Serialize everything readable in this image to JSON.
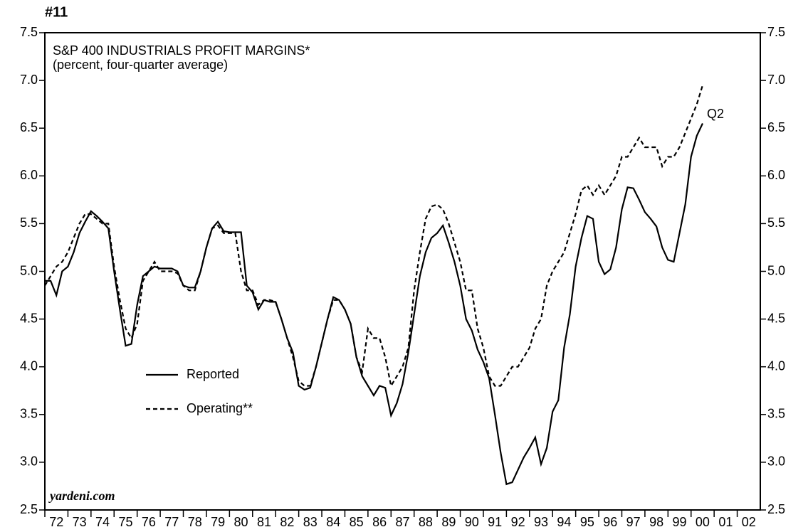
{
  "chart_data": {
    "type": "line",
    "chart_number": "#11",
    "title": "S&P 400 INDUSTRIALS PROFIT MARGINS*",
    "subtitle": "(percent, four-quarter average)",
    "source": "yardeni.com",
    "annotation": "Q2",
    "legend_position": "lower-left",
    "xlim": [
      1972,
      2003
    ],
    "xticks": [
      {
        "value": 1972.5,
        "label": "72"
      },
      {
        "value": 1973.5,
        "label": "73"
      },
      {
        "value": 1974.5,
        "label": "74"
      },
      {
        "value": 1975.5,
        "label": "75"
      },
      {
        "value": 1976.5,
        "label": "76"
      },
      {
        "value": 1977.5,
        "label": "77"
      },
      {
        "value": 1978.5,
        "label": "78"
      },
      {
        "value": 1979.5,
        "label": "79"
      },
      {
        "value": 1980.5,
        "label": "80"
      },
      {
        "value": 1981.5,
        "label": "81"
      },
      {
        "value": 1982.5,
        "label": "82"
      },
      {
        "value": 1983.5,
        "label": "83"
      },
      {
        "value": 1984.5,
        "label": "84"
      },
      {
        "value": 1985.5,
        "label": "85"
      },
      {
        "value": 1986.5,
        "label": "86"
      },
      {
        "value": 1987.5,
        "label": "87"
      },
      {
        "value": 1988.5,
        "label": "88"
      },
      {
        "value": 1989.5,
        "label": "89"
      },
      {
        "value": 1990.5,
        "label": "90"
      },
      {
        "value": 1991.5,
        "label": "91"
      },
      {
        "value": 1992.5,
        "label": "92"
      },
      {
        "value": 1993.5,
        "label": "93"
      },
      {
        "value": 1994.5,
        "label": "94"
      },
      {
        "value": 1995.5,
        "label": "95"
      },
      {
        "value": 1996.5,
        "label": "96"
      },
      {
        "value": 1997.5,
        "label": "97"
      },
      {
        "value": 1998.5,
        "label": "98"
      },
      {
        "value": 1999.5,
        "label": "99"
      },
      {
        "value": 2000.5,
        "label": "00"
      },
      {
        "value": 2001.5,
        "label": "01"
      },
      {
        "value": 2002.5,
        "label": "02"
      }
    ],
    "ylim": [
      2.5,
      7.5
    ],
    "yticks": [
      {
        "value": 2.5,
        "label": "2.5"
      },
      {
        "value": 3.0,
        "label": "3.0"
      },
      {
        "value": 3.5,
        "label": "3.5"
      },
      {
        "value": 4.0,
        "label": "4.0"
      },
      {
        "value": 4.5,
        "label": "4.5"
      },
      {
        "value": 5.0,
        "label": "5.0"
      },
      {
        "value": 5.5,
        "label": "5.5"
      },
      {
        "value": 6.0,
        "label": "6.0"
      },
      {
        "value": 6.5,
        "label": "6.5"
      },
      {
        "value": 7.0,
        "label": "7.0"
      },
      {
        "value": 7.5,
        "label": "7.5"
      }
    ],
    "grid": false,
    "x": [
      1972,
      1972.25,
      1972.5,
      1972.75,
      1973,
      1973.25,
      1973.5,
      1973.75,
      1974,
      1974.25,
      1974.5,
      1974.75,
      1975,
      1975.25,
      1975.5,
      1975.75,
      1976,
      1976.25,
      1976.5,
      1976.75,
      1977,
      1977.25,
      1977.5,
      1977.75,
      1978,
      1978.25,
      1978.5,
      1978.75,
      1979,
      1979.25,
      1979.5,
      1979.75,
      1980,
      1980.25,
      1980.5,
      1980.75,
      1981,
      1981.25,
      1981.5,
      1981.75,
      1982,
      1982.25,
      1982.5,
      1982.75,
      1983,
      1983.25,
      1983.5,
      1983.75,
      1984,
      1984.25,
      1984.5,
      1984.75,
      1985,
      1985.25,
      1985.5,
      1985.75,
      1986,
      1986.25,
      1986.5,
      1986.75,
      1987,
      1987.25,
      1987.5,
      1987.75,
      1988,
      1988.25,
      1988.5,
      1988.75,
      1989,
      1989.25,
      1989.5,
      1989.75,
      1990,
      1990.25,
      1990.5,
      1990.75,
      1991,
      1991.25,
      1991.5,
      1991.75,
      1992,
      1992.25,
      1992.5,
      1992.75,
      1993,
      1993.25,
      1993.5,
      1993.75,
      1994,
      1994.25,
      1994.5,
      1994.75,
      1995,
      1995.25,
      1995.5,
      1995.75,
      1996,
      1996.25,
      1996.5,
      1996.75,
      1997,
      1997.25,
      1997.5,
      1997.75,
      1998,
      1998.25,
      1998.5,
      1998.75,
      1999,
      1999.25,
      1999.5,
      1999.75,
      2000,
      2000.25,
      2000.5
    ],
    "series": [
      {
        "name": "Reported",
        "color": "#000000",
        "dash": "solid",
        "values": [
          4.9,
          4.9,
          4.75,
          5.0,
          5.05,
          5.2,
          5.4,
          5.52,
          5.63,
          5.58,
          5.52,
          5.45,
          5.0,
          4.6,
          4.22,
          4.24,
          4.65,
          4.95,
          5.0,
          5.05,
          5.03,
          5.03,
          5.03,
          5.0,
          4.85,
          4.83,
          4.83,
          5.0,
          5.25,
          5.45,
          5.52,
          5.42,
          5.41,
          5.41,
          5.41,
          4.85,
          4.78,
          4.6,
          4.7,
          4.68,
          4.68,
          4.5,
          4.3,
          4.15,
          3.8,
          3.76,
          3.78,
          4.0,
          4.25,
          4.5,
          4.73,
          4.7,
          4.6,
          4.45,
          4.1,
          3.9,
          3.8,
          3.7,
          3.8,
          3.78,
          3.49,
          3.62,
          3.82,
          4.15,
          4.55,
          4.95,
          5.2,
          5.35,
          5.4,
          5.48,
          5.3,
          5.1,
          4.85,
          4.5,
          4.38,
          4.18,
          4.05,
          3.88,
          3.5,
          3.1,
          2.77,
          2.79,
          2.92,
          3.05,
          3.15,
          3.26,
          2.98,
          3.15,
          3.53,
          3.65,
          4.2,
          4.55,
          5.05,
          5.35,
          5.58,
          5.55,
          5.1,
          4.97,
          5.02,
          5.25,
          5.65,
          5.88,
          5.87,
          5.75,
          5.62,
          5.55,
          5.47,
          5.25,
          5.12,
          5.1,
          5.4,
          5.7,
          6.2,
          6.42,
          6.55
        ]
      },
      {
        "name": "Operating**",
        "color": "#000000",
        "dash": "dashed",
        "values": [
          4.85,
          4.95,
          5.05,
          5.1,
          5.2,
          5.35,
          5.5,
          5.6,
          5.6,
          5.55,
          5.5,
          5.5,
          5.05,
          4.7,
          4.4,
          4.3,
          4.45,
          4.9,
          5.0,
          5.1,
          5.0,
          5.0,
          5.0,
          4.98,
          4.85,
          4.8,
          4.8,
          5.0,
          5.25,
          5.45,
          5.48,
          5.4,
          5.4,
          5.4,
          5.0,
          4.8,
          4.8,
          4.65,
          4.7,
          4.7,
          4.68,
          4.5,
          4.3,
          4.1,
          3.85,
          3.8,
          3.8,
          4.0,
          4.25,
          4.5,
          4.7,
          4.7,
          4.6,
          4.45,
          4.1,
          3.95,
          4.4,
          4.3,
          4.3,
          4.1,
          3.8,
          3.9,
          4.0,
          4.2,
          4.8,
          5.2,
          5.55,
          5.68,
          5.7,
          5.65,
          5.5,
          5.3,
          5.1,
          4.8,
          4.8,
          4.4,
          4.2,
          3.9,
          3.8,
          3.8,
          3.9,
          4.0,
          4.0,
          4.1,
          4.2,
          4.4,
          4.5,
          4.85,
          5.0,
          5.1,
          5.2,
          5.4,
          5.6,
          5.85,
          5.9,
          5.8,
          5.9,
          5.8,
          5.9,
          6.0,
          6.2,
          6.2,
          6.3,
          6.4,
          6.3,
          6.3,
          6.3,
          6.1,
          6.2,
          6.2,
          6.3,
          6.45,
          6.6,
          6.75,
          6.95
        ]
      }
    ]
  }
}
